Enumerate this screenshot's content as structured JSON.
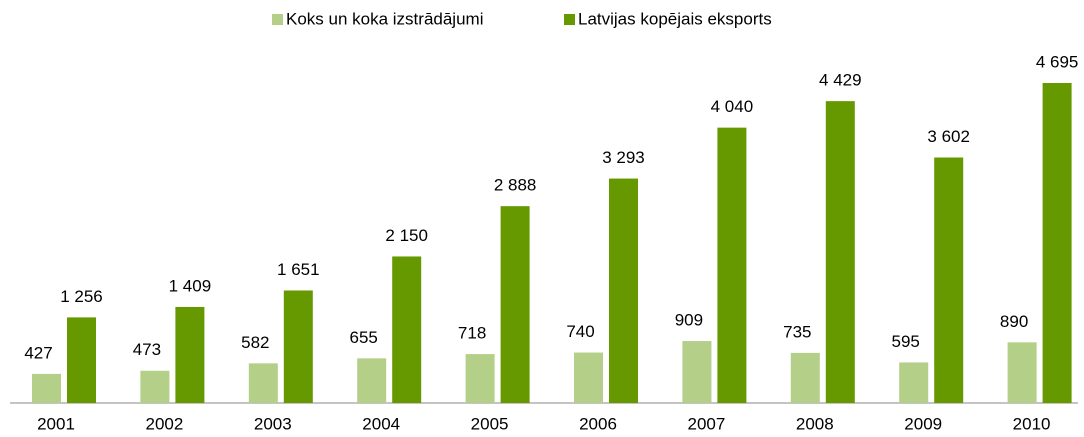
{
  "chart_data": {
    "type": "bar",
    "categories": [
      "2001",
      "2002",
      "2003",
      "2004",
      "2005",
      "2006",
      "2007",
      "2008",
      "2009",
      "2010"
    ],
    "series": [
      {
        "name": "Koks un koka izstrādājumi",
        "color": "#b3cf88",
        "values": [
          427,
          473,
          582,
          655,
          718,
          740,
          909,
          735,
          595,
          890
        ]
      },
      {
        "name": "Latvijas kopējais eksports",
        "color": "#669900",
        "values": [
          1256,
          1409,
          1651,
          2150,
          2888,
          3293,
          4040,
          4429,
          3602,
          4695
        ],
        "value_labels": [
          "1 256",
          "1 409",
          "1 651",
          "2 150",
          "2 888",
          "3 293",
          "4 040",
          "4 429",
          "3 602",
          "4 695"
        ]
      }
    ],
    "legend": "top"
  }
}
